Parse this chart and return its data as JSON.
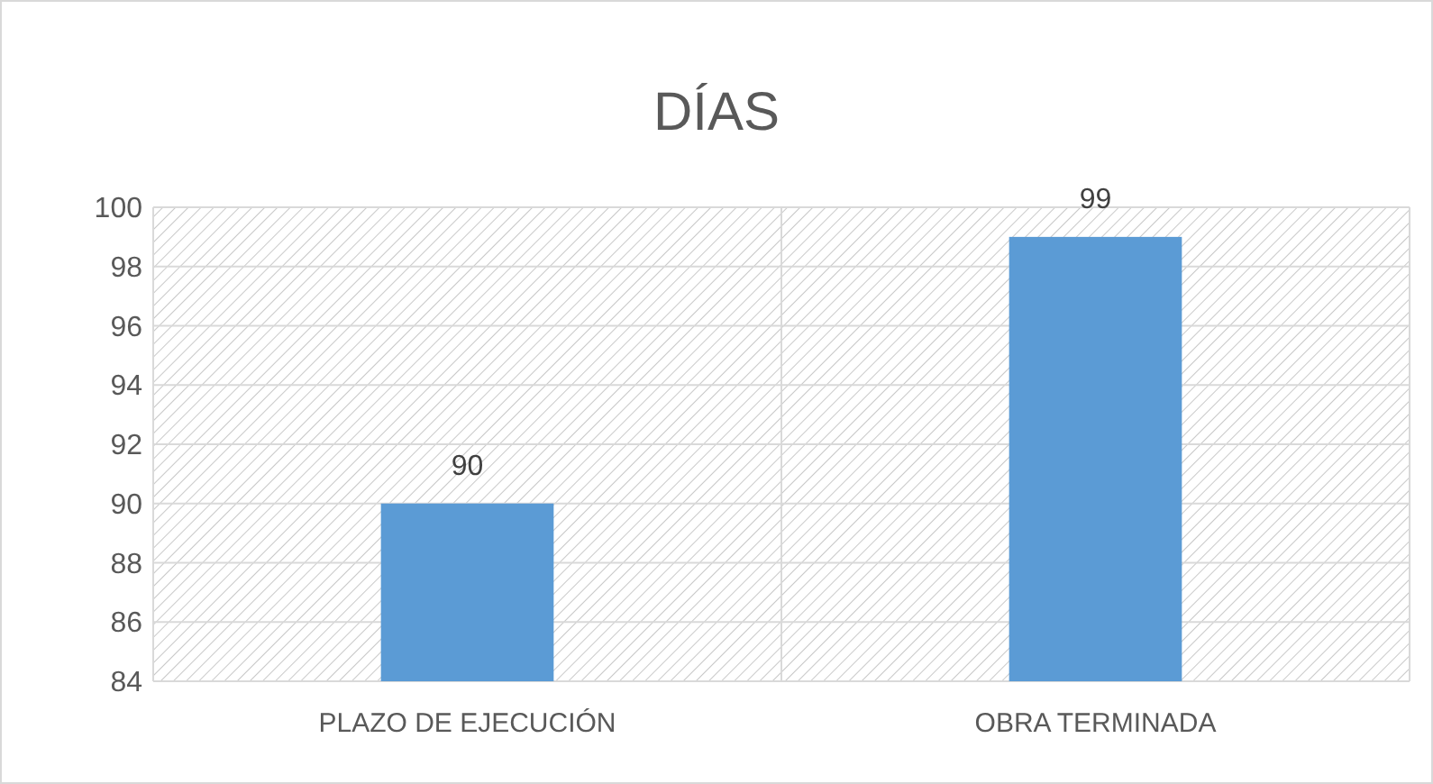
{
  "chart_data": {
    "type": "bar",
    "title": "DÍAS",
    "categories": [
      "PLAZO DE EJECUCIÓN",
      "OBRA TERMINADA"
    ],
    "values": [
      90,
      99
    ],
    "color": "#5b9bd5",
    "ylim": [
      84,
      100
    ],
    "yticks": [
      84,
      86,
      88,
      90,
      92,
      94,
      96,
      98,
      100
    ],
    "grid": true,
    "data_labels": true
  }
}
